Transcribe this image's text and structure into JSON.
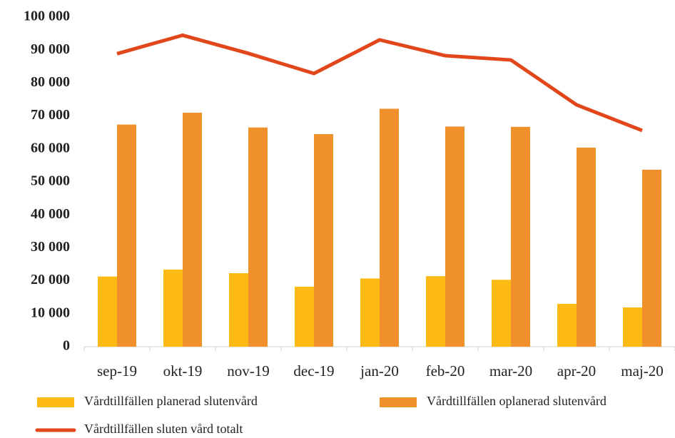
{
  "chart_data": {
    "type": "bar",
    "categories": [
      "sep-19",
      "okt-19",
      "nov-19",
      "dec-19",
      "jan-20",
      "feb-20",
      "mar-20",
      "apr-20",
      "maj-20"
    ],
    "series": [
      {
        "name": "Vårdtillfällen planerad slutenvård",
        "color": "#FDBA12",
        "type": "bar",
        "values": [
          21300,
          23400,
          22300,
          18200,
          20700,
          21400,
          20300,
          13000,
          11900
        ]
      },
      {
        "name": "Vårdtillfällen oplanerad slutenvård",
        "color": "#F0902A",
        "type": "bar",
        "values": [
          67400,
          71000,
          66500,
          64500,
          72200,
          66800,
          66700,
          60400,
          53700
        ]
      },
      {
        "name": "Vårdtillfällen sluten vård totalt",
        "color": "#E2471B",
        "type": "line",
        "values": [
          88900,
          94500,
          89000,
          82900,
          93100,
          88300,
          87000,
          73400,
          65600
        ]
      }
    ],
    "ylim": [
      0,
      100000
    ],
    "yticks": [
      0,
      {
        "value": 10000,
        "label": "10 000"
      },
      {
        "value": 20000,
        "label": "20 000"
      },
      {
        "value": 30000,
        "label": "30 000"
      },
      {
        "value": 40000,
        "label": "40 000"
      },
      {
        "value": 50000,
        "label": "50 000"
      },
      {
        "value": 60000,
        "label": "60 000"
      },
      {
        "value": 70000,
        "label": "70 000"
      },
      {
        "value": 80000,
        "label": "80 000"
      },
      {
        "value": 90000,
        "label": "90 000"
      },
      {
        "value": 100000,
        "label": "100 000"
      }
    ],
    "grid": false
  }
}
